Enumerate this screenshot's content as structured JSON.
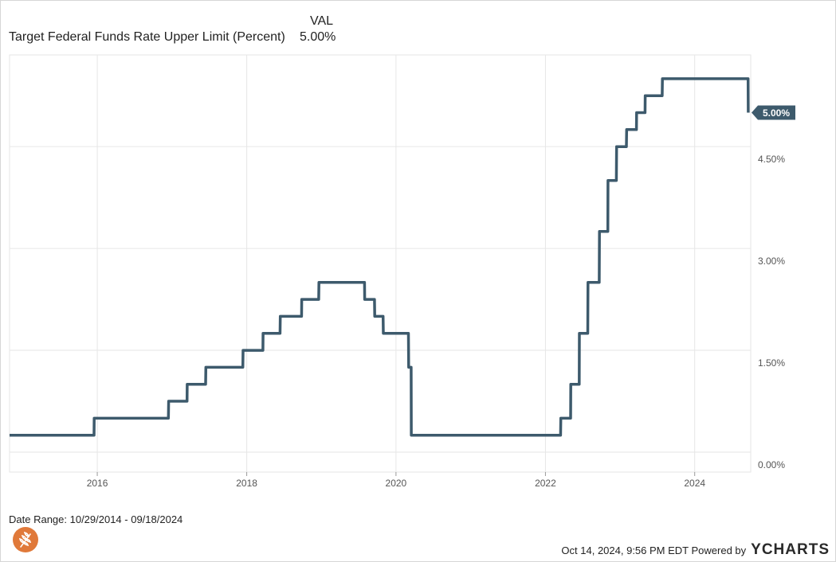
{
  "legend": {
    "header": "VAL",
    "series_name": "Target Federal Funds Rate Upper Limit (Percent)",
    "series_value": "5.00%"
  },
  "chart_data": {
    "type": "line",
    "series": [
      {
        "name": "Target Federal Funds Rate Upper Limit (Percent)",
        "color": "#3d5a6c",
        "points": [
          [
            "2014-10-29",
            0.25
          ],
          [
            "2015-12-16",
            0.25
          ],
          [
            "2015-12-17",
            0.5
          ],
          [
            "2016-12-14",
            0.5
          ],
          [
            "2016-12-15",
            0.75
          ],
          [
            "2017-03-15",
            0.75
          ],
          [
            "2017-03-16",
            1.0
          ],
          [
            "2017-06-14",
            1.0
          ],
          [
            "2017-06-15",
            1.25
          ],
          [
            "2017-12-13",
            1.25
          ],
          [
            "2017-12-14",
            1.5
          ],
          [
            "2018-03-21",
            1.5
          ],
          [
            "2018-03-22",
            1.75
          ],
          [
            "2018-06-13",
            1.75
          ],
          [
            "2018-06-14",
            2.0
          ],
          [
            "2018-09-26",
            2.0
          ],
          [
            "2018-09-27",
            2.25
          ],
          [
            "2018-12-19",
            2.25
          ],
          [
            "2018-12-20",
            2.5
          ],
          [
            "2019-07-31",
            2.5
          ],
          [
            "2019-08-01",
            2.25
          ],
          [
            "2019-09-18",
            2.25
          ],
          [
            "2019-09-19",
            2.0
          ],
          [
            "2019-10-30",
            2.0
          ],
          [
            "2019-10-31",
            1.75
          ],
          [
            "2020-03-02",
            1.75
          ],
          [
            "2020-03-03",
            1.25
          ],
          [
            "2020-03-15",
            1.25
          ],
          [
            "2020-03-16",
            0.25
          ],
          [
            "2022-03-16",
            0.25
          ],
          [
            "2022-03-17",
            0.5
          ],
          [
            "2022-05-04",
            0.5
          ],
          [
            "2022-05-05",
            1.0
          ],
          [
            "2022-06-15",
            1.0
          ],
          [
            "2022-06-16",
            1.75
          ],
          [
            "2022-07-27",
            1.75
          ],
          [
            "2022-07-28",
            2.5
          ],
          [
            "2022-09-21",
            2.5
          ],
          [
            "2022-09-22",
            3.25
          ],
          [
            "2022-11-02",
            3.25
          ],
          [
            "2022-11-03",
            4.0
          ],
          [
            "2022-12-14",
            4.0
          ],
          [
            "2022-12-15",
            4.5
          ],
          [
            "2023-02-01",
            4.5
          ],
          [
            "2023-02-02",
            4.75
          ],
          [
            "2023-03-22",
            4.75
          ],
          [
            "2023-03-23",
            5.0
          ],
          [
            "2023-05-03",
            5.0
          ],
          [
            "2023-05-04",
            5.25
          ],
          [
            "2023-07-26",
            5.25
          ],
          [
            "2023-07-27",
            5.5
          ],
          [
            "2024-09-18",
            5.5
          ],
          [
            "2024-09-19",
            5.0
          ]
        ]
      }
    ],
    "x_range": [
      "2014-10-29",
      "2024-10-01"
    ],
    "x_ticks": [
      "2016",
      "2018",
      "2020",
      "2022",
      "2024"
    ],
    "y_range": [
      0,
      5.85
    ],
    "y_ticks": [
      {
        "value": 0,
        "label": "0.00%"
      },
      {
        "value": 1.5,
        "label": "1.50%"
      },
      {
        "value": 3.0,
        "label": "3.00%"
      },
      {
        "value": 4.5,
        "label": "4.50%"
      }
    ],
    "end_label": "5.00%",
    "grid": true,
    "y_axis_side": "right"
  },
  "footer": {
    "date_range": "Date Range: 10/29/2014 - 09/18/2024",
    "timestamp": "Oct 14, 2024, 9:56 PM EDT Powered by",
    "brand_y": "Y",
    "brand_rest": "CHARTS"
  },
  "colors": {
    "line": "#3d5a6c",
    "grid": "#e6e6e6",
    "logo": "#e0793a"
  }
}
